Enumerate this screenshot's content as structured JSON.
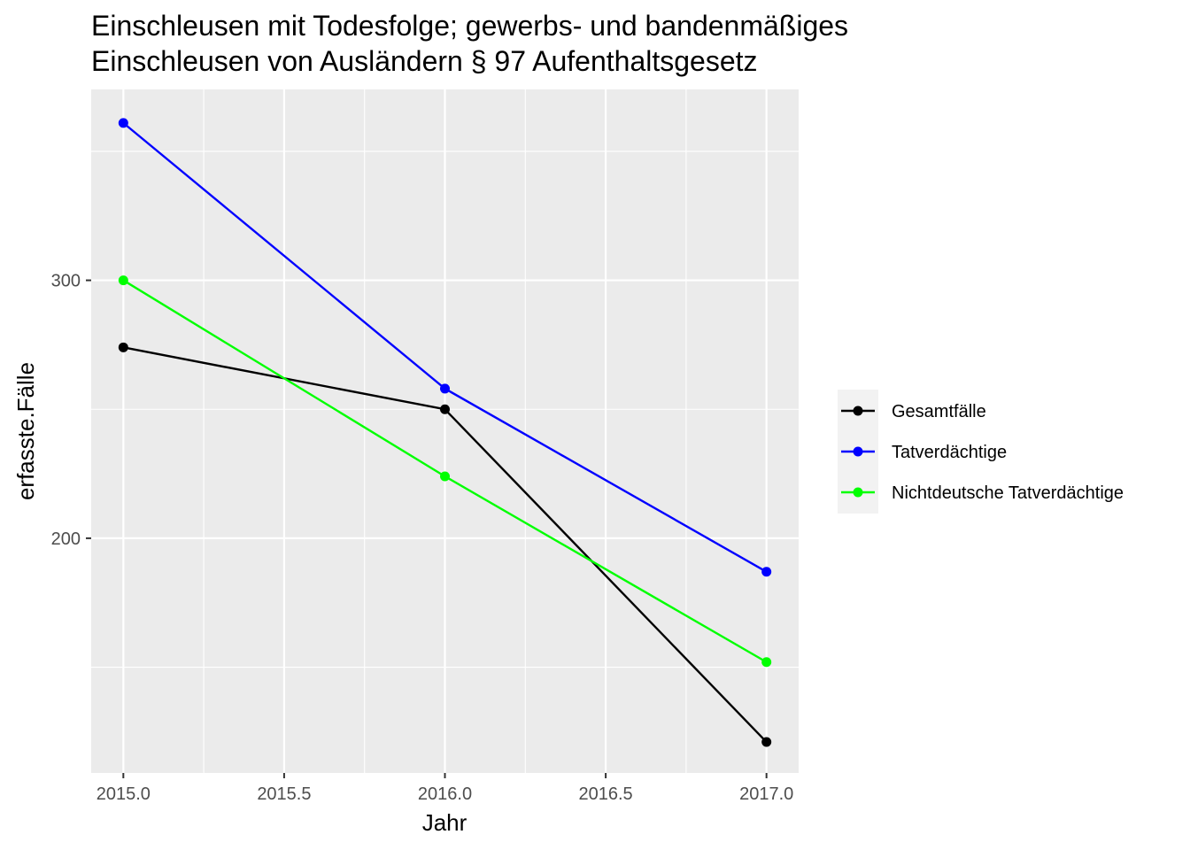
{
  "chart_data": {
    "type": "line",
    "title": [
      "Einschleusen mit Todesfolge; gewerbs- und bandenmäßiges",
      "Einschleusen von Ausländern § 97 Aufenthaltsgesetz"
    ],
    "xlabel": "Jahr",
    "ylabel": "erfasste.Fälle",
    "x": [
      2015.0,
      2016.0,
      2017.0
    ],
    "xlim": [
      2014.9,
      2017.1
    ],
    "ylim": [
      109,
      374
    ],
    "x_ticks": [
      2015.0,
      2015.5,
      2016.0,
      2016.5,
      2017.0
    ],
    "x_tick_labels": [
      "2015.0",
      "2015.5",
      "2016.0",
      "2016.5",
      "2017.0"
    ],
    "y_ticks": [
      200,
      300
    ],
    "y_tick_labels": [
      "200",
      "300"
    ],
    "grid": true,
    "legend_position": "right",
    "series": [
      {
        "name": "Gesamtfälle",
        "values": [
          274,
          250,
          121
        ],
        "color": "#000000"
      },
      {
        "name": "Tatverdächtige",
        "values": [
          361,
          258,
          187
        ],
        "color": "#0000ff"
      },
      {
        "name": "Nichtdeutsche Tatverdächtige",
        "values": [
          300,
          224,
          152
        ],
        "color": "#00ff00"
      }
    ]
  }
}
